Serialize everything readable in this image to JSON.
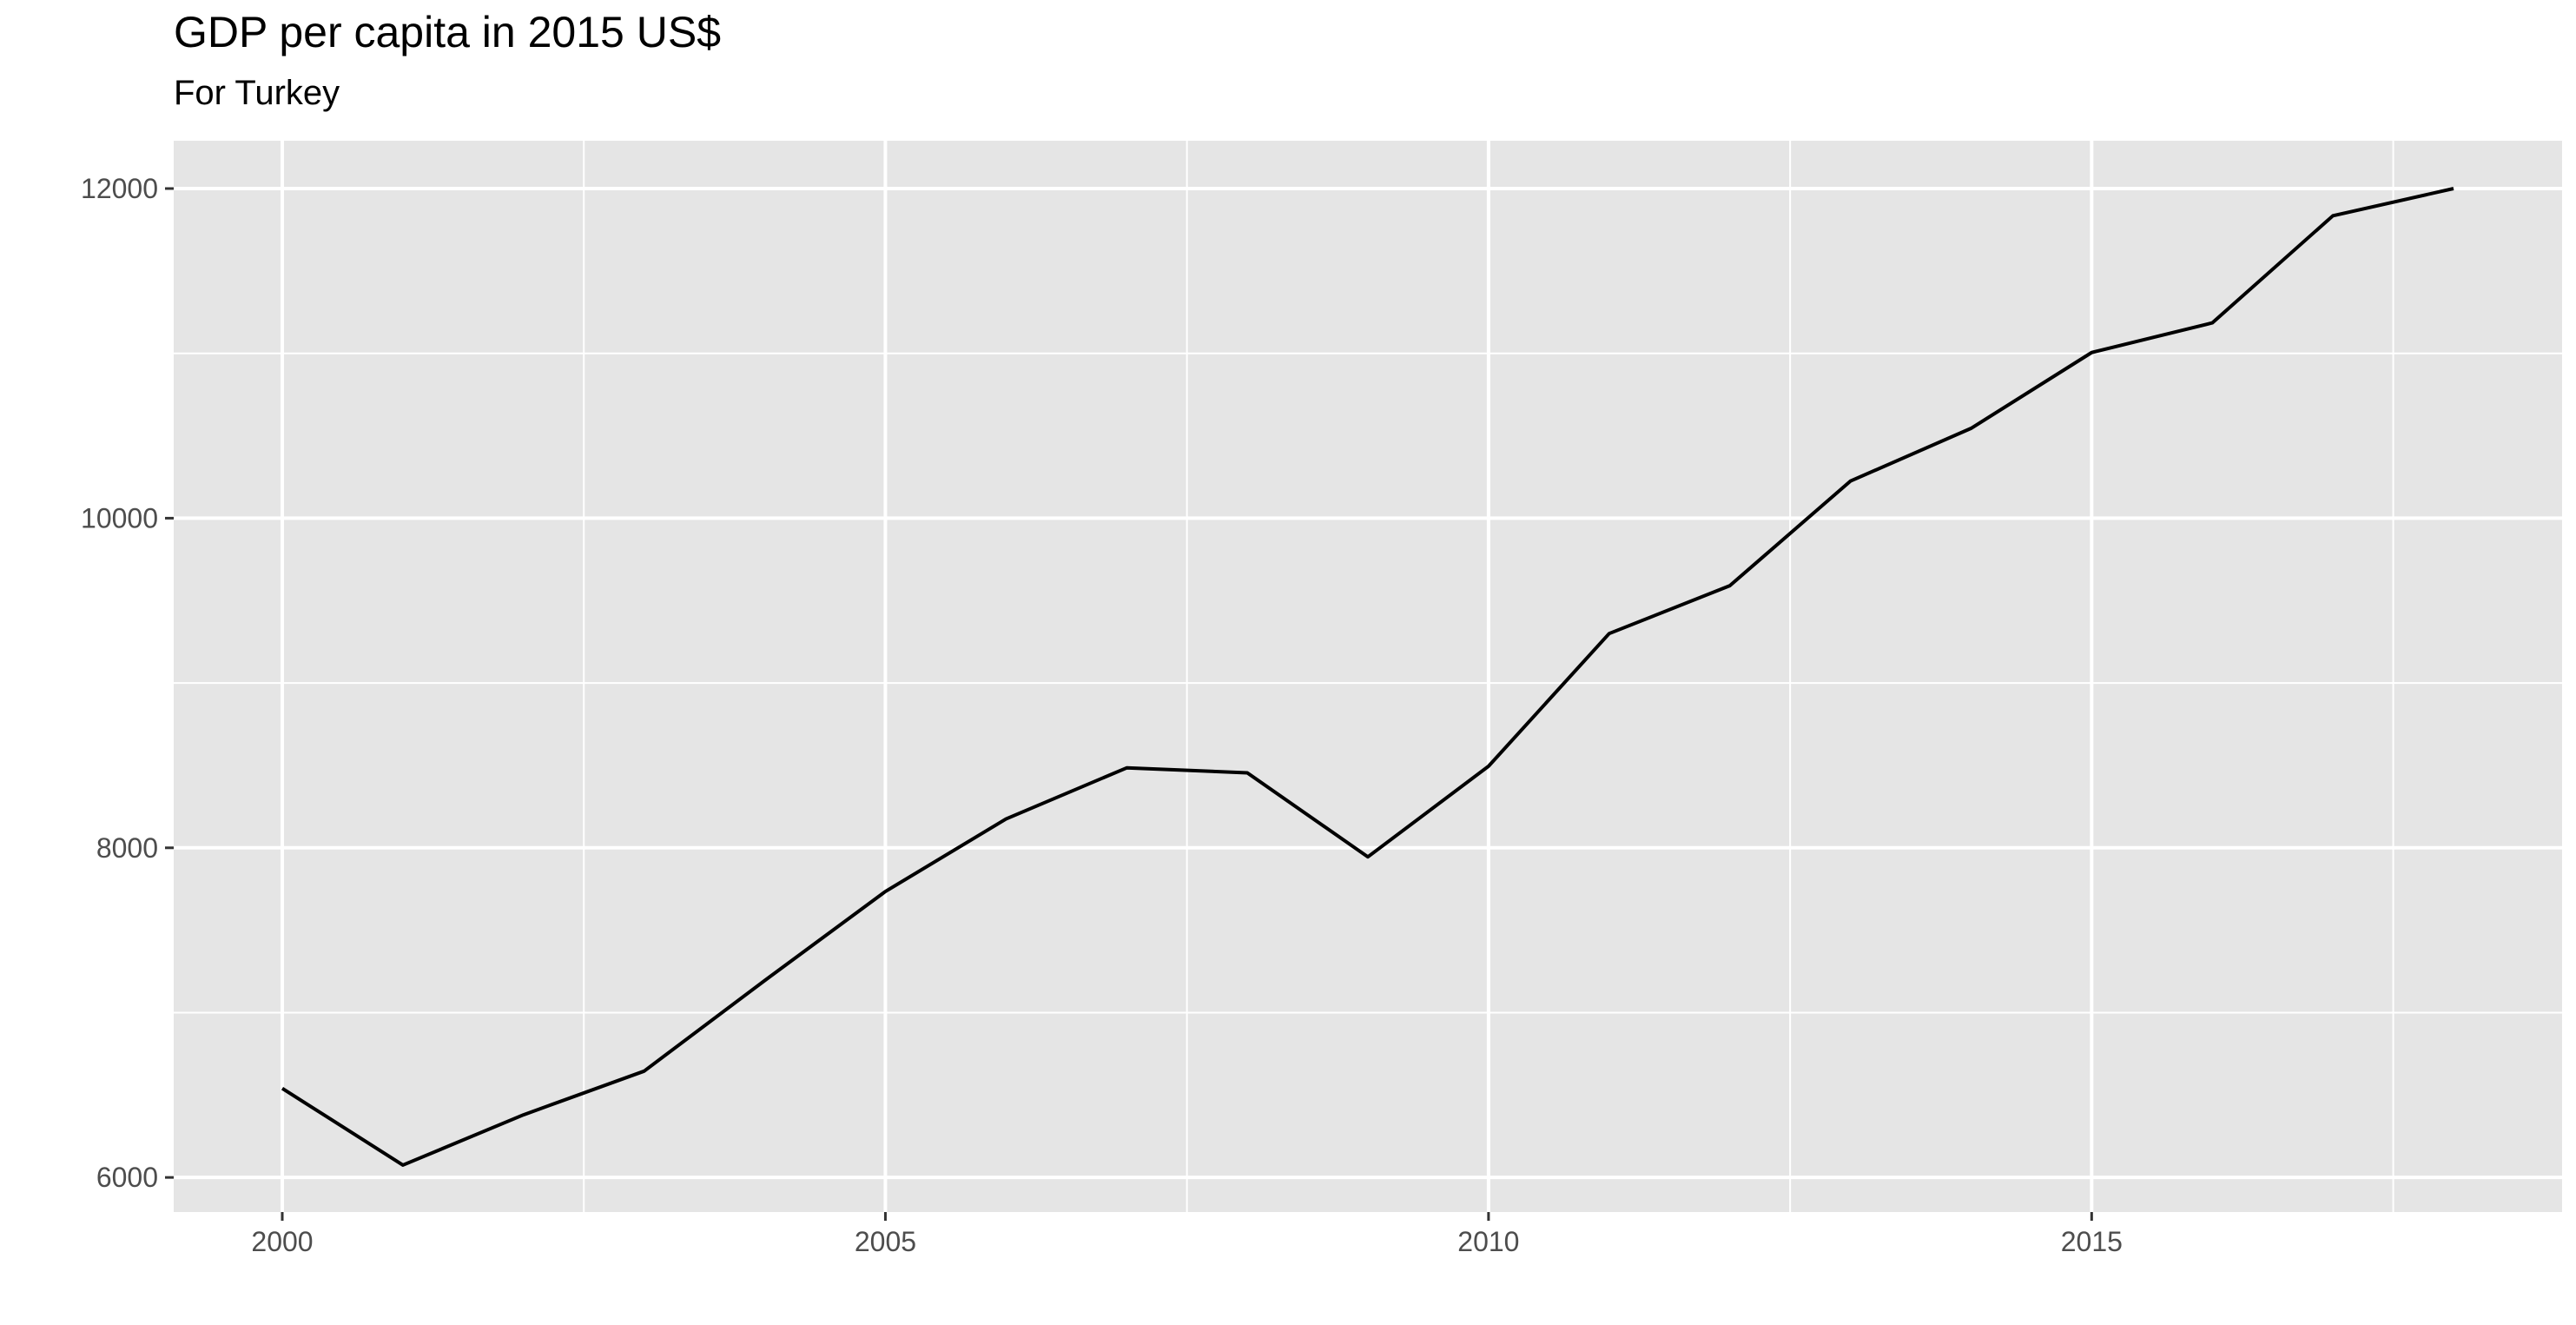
{
  "chart_data": {
    "type": "line",
    "title": "GDP per capita in 2015 US$",
    "subtitle": "For Turkey",
    "xlabel": "",
    "ylabel": "",
    "x": [
      2000,
      2001,
      2002,
      2003,
      2004,
      2005,
      2006,
      2007,
      2008,
      2009,
      2010,
      2011,
      2012,
      2013,
      2014,
      2015,
      2016,
      2017,
      2018
    ],
    "series": [
      {
        "values": [
          6540,
          6075,
          6380,
          6645,
          7195,
          7735,
          8175,
          8485,
          8455,
          7945,
          8495,
          9300,
          9590,
          10225,
          10545,
          11005,
          11185,
          11835,
          12000
        ]
      }
    ],
    "xlim": [
      1999.1,
      2018.9
    ],
    "ylim": [
      5790,
      12290
    ],
    "x_ticks": [
      2000,
      2005,
      2010,
      2015
    ],
    "x_tick_labels": [
      "2000",
      "2005",
      "2010",
      "2015"
    ],
    "y_ticks": [
      6000,
      8000,
      10000,
      12000
    ],
    "y_tick_labels": [
      "6000",
      "8000",
      "10000",
      "12000"
    ],
    "grid": true,
    "legend": "none",
    "colors": {
      "panel_background": "#e5e5e5",
      "grid": "#ffffff",
      "line": "#000000",
      "tick_text": "#4d4d4d",
      "tick_mark": "#333333"
    }
  }
}
